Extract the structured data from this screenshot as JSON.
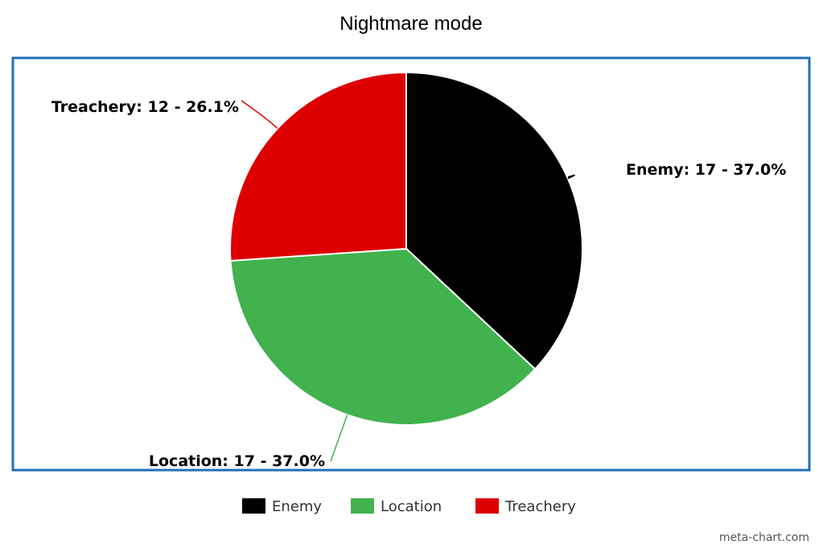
{
  "chart_data": {
    "type": "pie",
    "title": "Nightmare mode",
    "slices": [
      {
        "label": "Enemy",
        "value": 17,
        "percent": 37.0,
        "data_label": "Enemy: 17 - 37.0%",
        "color": "#000000"
      },
      {
        "label": "Location",
        "value": 17,
        "percent": 37.0,
        "data_label": "Location: 17 - 37.0%",
        "color": "#41b24e"
      },
      {
        "label": "Treachery",
        "value": 12,
        "percent": 26.1,
        "data_label": "Treachery: 12 - 26.1%",
        "color": "#de0000"
      }
    ],
    "legend": {
      "placement": "bottom",
      "items": [
        "Enemy",
        "Location",
        "Treachery"
      ]
    },
    "border_color": "#1f6fb7"
  },
  "watermark": "meta-chart.com"
}
